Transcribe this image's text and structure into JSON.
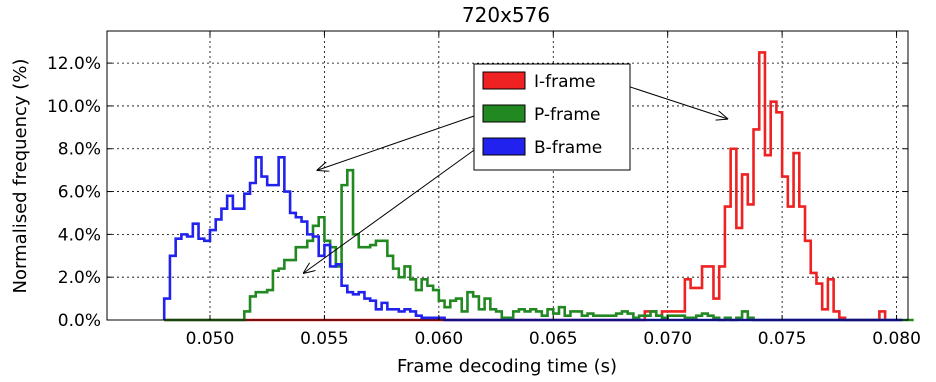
{
  "chart_data": {
    "type": "histogram",
    "title": "720x576",
    "xlabel": "Frame decoding time (s)",
    "ylabel": "Normalised frequency (%)",
    "xlim": [
      0.0455,
      0.0805
    ],
    "ylim": [
      0,
      13.5
    ],
    "x_ticks": [
      0.05,
      0.055,
      0.06,
      0.065,
      0.07,
      0.075,
      0.08
    ],
    "x_tick_labels": [
      "0.050",
      "0.055",
      "0.060",
      "0.065",
      "0.070",
      "0.075",
      "0.080"
    ],
    "y_ticks": [
      0,
      2,
      4,
      6,
      8,
      10,
      12
    ],
    "y_tick_labels": [
      "0.0%",
      "2.0%",
      "4.0%",
      "6.0%",
      "8.0%",
      "10.0%",
      "12.0%"
    ],
    "grid": true,
    "legend_position": "upper-center",
    "bin_start": 0.048,
    "bin_width": 0.00025,
    "series": [
      {
        "name": "I-frame",
        "color": "#ee2222",
        "values": [
          0,
          0,
          0,
          0,
          0,
          0,
          0,
          0,
          0,
          0,
          0,
          0,
          0,
          0,
          0,
          0,
          0,
          0,
          0,
          0,
          0,
          0,
          0,
          0,
          0,
          0,
          0,
          0,
          0,
          0,
          0,
          0,
          0,
          0,
          0,
          0,
          0,
          0,
          0,
          0,
          0,
          0,
          0,
          0,
          0,
          0,
          0,
          0,
          0,
          0,
          0,
          0,
          0,
          0,
          0,
          0,
          0,
          0,
          0,
          0,
          0,
          0,
          0,
          0,
          0,
          0,
          0,
          0,
          0,
          0,
          0,
          0,
          0,
          0,
          0,
          0,
          0,
          0,
          0,
          0,
          0,
          0,
          0,
          0,
          0.4,
          0.4,
          0.2,
          0.4,
          0.4,
          0.4,
          0.4,
          1.9,
          1.5,
          1.5,
          2.5,
          2.5,
          1.0,
          2.5,
          5.3,
          8.0,
          4.3,
          6.8,
          5.4,
          8.9,
          12.5,
          7.7,
          10.2,
          9.7,
          6.7,
          5.3,
          7.8,
          5.3,
          3.7,
          2.2,
          1.7,
          0.5,
          1.9,
          0.4,
          0.1,
          0,
          0,
          0,
          0,
          0,
          0,
          0.4
        ]
      },
      {
        "name": "P-frame",
        "color": "#228822",
        "values": [
          0,
          0,
          0,
          0,
          0,
          0,
          0,
          0,
          0,
          0,
          0,
          0,
          0,
          0,
          0.4,
          1.1,
          1.3,
          1.3,
          1.4,
          2.3,
          2.4,
          2.8,
          2.8,
          3.4,
          3.4,
          3.7,
          4.4,
          4.8,
          3.7,
          3.4,
          2.5,
          6.3,
          7.0,
          4.0,
          3.4,
          3.4,
          3.5,
          3.7,
          3.7,
          3.0,
          2.4,
          2.0,
          2.5,
          1.9,
          1.4,
          1.9,
          1.6,
          1.4,
          0.9,
          0.6,
          0.9,
          1.0,
          0.4,
          1.3,
          1.1,
          0.5,
          1.0,
          0.5,
          0.4,
          0.1,
          0.1,
          0.4,
          0.5,
          0.4,
          0.5,
          0.4,
          0.2,
          0.5,
          0.3,
          0.6,
          0.2,
          0.4,
          0.4,
          0.2,
          0.3,
          0.2,
          0.2,
          0.2,
          0.2,
          0.3,
          0.4,
          0.3,
          0.1,
          0.2,
          0.2,
          0.4,
          0.2,
          0.1,
          0.2,
          0.2,
          0.2,
          0.1,
          0.1,
          0.2,
          0.3,
          0.2,
          0.1,
          0,
          0.1,
          0,
          0.1,
          0.4,
          0.1,
          0,
          0,
          0,
          0,
          0,
          0,
          0,
          0,
          0,
          0,
          0,
          0,
          0,
          0,
          0,
          0,
          0,
          0,
          0,
          0,
          0,
          0,
          0,
          0,
          0,
          0,
          0,
          0
        ]
      },
      {
        "name": "B-frame",
        "color": "#2222ee",
        "values": [
          1.0,
          3.0,
          3.8,
          4.0,
          3.9,
          4.5,
          3.8,
          3.7,
          4.2,
          4.7,
          5.2,
          5.8,
          5.2,
          5.2,
          5.9,
          6.4,
          7.6,
          6.7,
          6.3,
          6.3,
          7.6,
          6.0,
          5.0,
          4.8,
          4.6,
          4.0,
          3.9,
          3.0,
          3.5,
          2.5,
          2.6,
          1.6,
          1.3,
          1.2,
          1.3,
          1.0,
          0.9,
          0.5,
          0.8,
          0.5,
          0.5,
          0.4,
          0.5,
          0.4,
          0.2,
          0.1,
          0.1,
          0.1,
          0.1,
          0,
          0,
          0,
          0,
          0,
          0,
          0,
          0,
          0,
          0,
          0,
          0,
          0,
          0,
          0,
          0,
          0,
          0,
          0,
          0,
          0,
          0,
          0,
          0,
          0,
          0,
          0,
          0,
          0,
          0,
          0,
          0,
          0,
          0,
          0,
          0,
          0,
          0,
          0,
          0,
          0,
          0,
          0,
          0,
          0,
          0,
          0,
          0,
          0,
          0,
          0,
          0,
          0,
          0,
          0,
          0,
          0,
          0,
          0,
          0,
          0,
          0,
          0,
          0,
          0,
          0,
          0,
          0,
          0,
          0,
          0,
          0,
          0,
          0,
          0,
          0,
          0,
          0,
          0,
          0
        ]
      }
    ],
    "annotations": [
      {
        "from_series": "I-frame",
        "target": [
          0.0726,
          9.4
        ]
      },
      {
        "from_series": "P-frame",
        "target": [
          0.0547,
          7.0
        ]
      },
      {
        "from_series": "B-frame",
        "target": [
          0.0541,
          2.2
        ]
      }
    ]
  }
}
